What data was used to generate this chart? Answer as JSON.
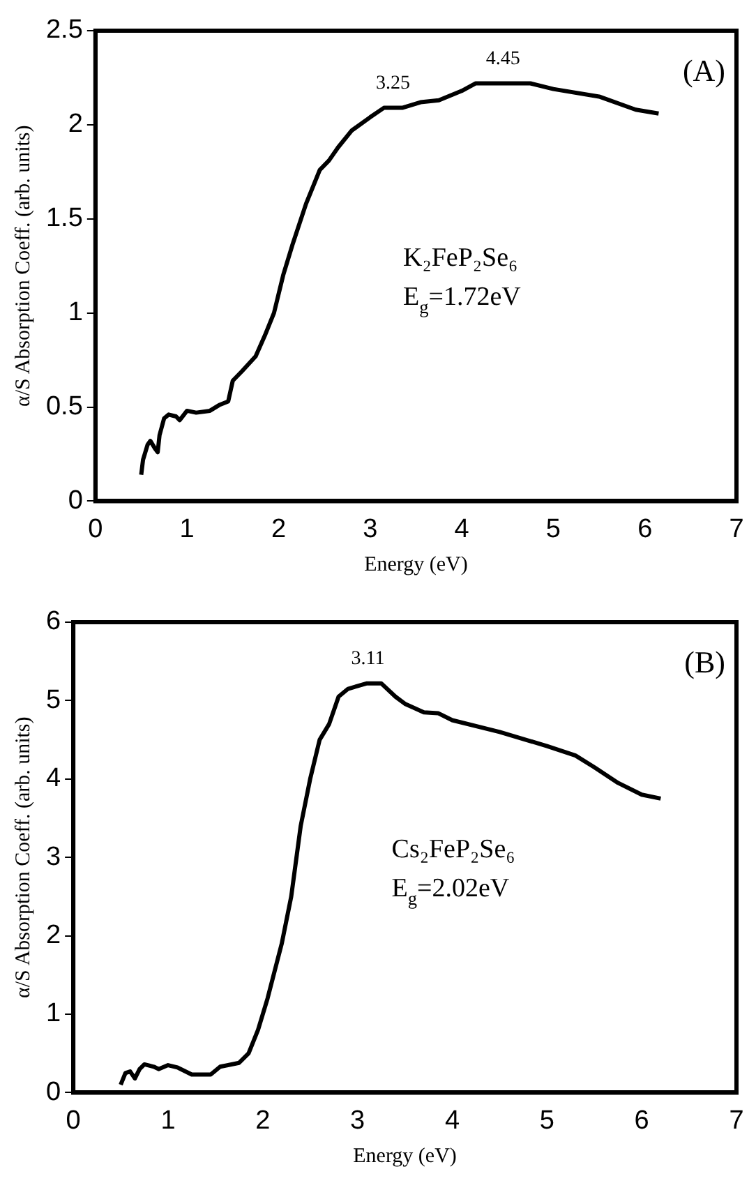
{
  "chart_data": [
    {
      "type": "line",
      "xlabel": "Energy (eV)",
      "ylabel": "α/S Absorption Coeff. (arb. units)",
      "xlim": [
        0,
        7
      ],
      "xticks": [
        0,
        1,
        2,
        3,
        4,
        5,
        6,
        7
      ],
      "ylim": [
        0,
        2.5
      ],
      "yticks": [
        0,
        0.5,
        1,
        1.5,
        2,
        2.5
      ],
      "grid": false,
      "legend": false,
      "marker": "none",
      "line_style": "solid",
      "annotations": [
        "(A)",
        "K₂FeP₂Se₆",
        "E$_{g}$=1.72eV",
        {
          "text": "3.25",
          "x": 3.25,
          "y": 2.09
        },
        {
          "text": "4.45",
          "x": 4.45,
          "y": 2.22
        }
      ],
      "series": [
        {
          "color": "#000000",
          "x": [
            0.5,
            0.52,
            0.57,
            0.6,
            0.65,
            0.68,
            0.7,
            0.75,
            0.8,
            0.88,
            0.92,
            1.0,
            1.1,
            1.25,
            1.35,
            1.45,
            1.5,
            1.6,
            1.75,
            1.85,
            1.95,
            2.05,
            2.15,
            2.3,
            2.45,
            2.55,
            2.65,
            2.8,
            3.0,
            3.15,
            3.35,
            3.55,
            3.75,
            4.0,
            4.15,
            4.75,
            5.0,
            5.5,
            5.9,
            6.15
          ],
          "values": [
            0.14,
            0.22,
            0.3,
            0.32,
            0.28,
            0.26,
            0.35,
            0.44,
            0.46,
            0.45,
            0.43,
            0.48,
            0.47,
            0.48,
            0.51,
            0.53,
            0.64,
            0.69,
            0.77,
            0.88,
            1.0,
            1.2,
            1.36,
            1.58,
            1.76,
            1.81,
            1.88,
            1.97,
            2.04,
            2.09,
            2.09,
            2.12,
            2.13,
            2.18,
            2.22,
            2.22,
            2.19,
            2.15,
            2.08,
            2.06
          ]
        }
      ]
    },
    {
      "type": "line",
      "xlabel": "Energy (eV)",
      "ylabel": "α/S Absorption Coeff. (arb. units)",
      "xlim": [
        0,
        7
      ],
      "xticks": [
        0,
        1,
        2,
        3,
        4,
        5,
        6,
        7
      ],
      "ylim": [
        0,
        6
      ],
      "yticks": [
        0,
        1,
        2,
        3,
        4,
        5,
        6
      ],
      "grid": false,
      "legend": false,
      "marker": "none",
      "line_style": "solid",
      "annotations": [
        "(B)",
        "Cs₂FeP₂Se₆",
        "E$_{g}$=2.02eV",
        {
          "text": "3.11",
          "x": 3.11,
          "y": 5.22
        }
      ],
      "series": [
        {
          "color": "#000000",
          "x": [
            0.5,
            0.55,
            0.6,
            0.65,
            0.7,
            0.75,
            0.85,
            0.9,
            1.0,
            1.1,
            1.25,
            1.45,
            1.55,
            1.75,
            1.85,
            1.95,
            2.05,
            2.2,
            2.3,
            2.4,
            2.5,
            2.6,
            2.7,
            2.8,
            2.9,
            3.1,
            3.25,
            3.4,
            3.5,
            3.7,
            3.85,
            4.0,
            4.5,
            5.0,
            5.3,
            5.5,
            5.75,
            6.0,
            6.2
          ],
          "values": [
            0.1,
            0.25,
            0.27,
            0.18,
            0.3,
            0.36,
            0.33,
            0.3,
            0.35,
            0.32,
            0.23,
            0.23,
            0.33,
            0.38,
            0.5,
            0.8,
            1.2,
            1.9,
            2.5,
            3.4,
            4.0,
            4.5,
            4.7,
            5.05,
            5.15,
            5.22,
            5.22,
            5.05,
            4.96,
            4.85,
            4.84,
            4.75,
            4.6,
            4.42,
            4.3,
            4.15,
            3.95,
            3.8,
            3.75
          ]
        }
      ]
    }
  ]
}
